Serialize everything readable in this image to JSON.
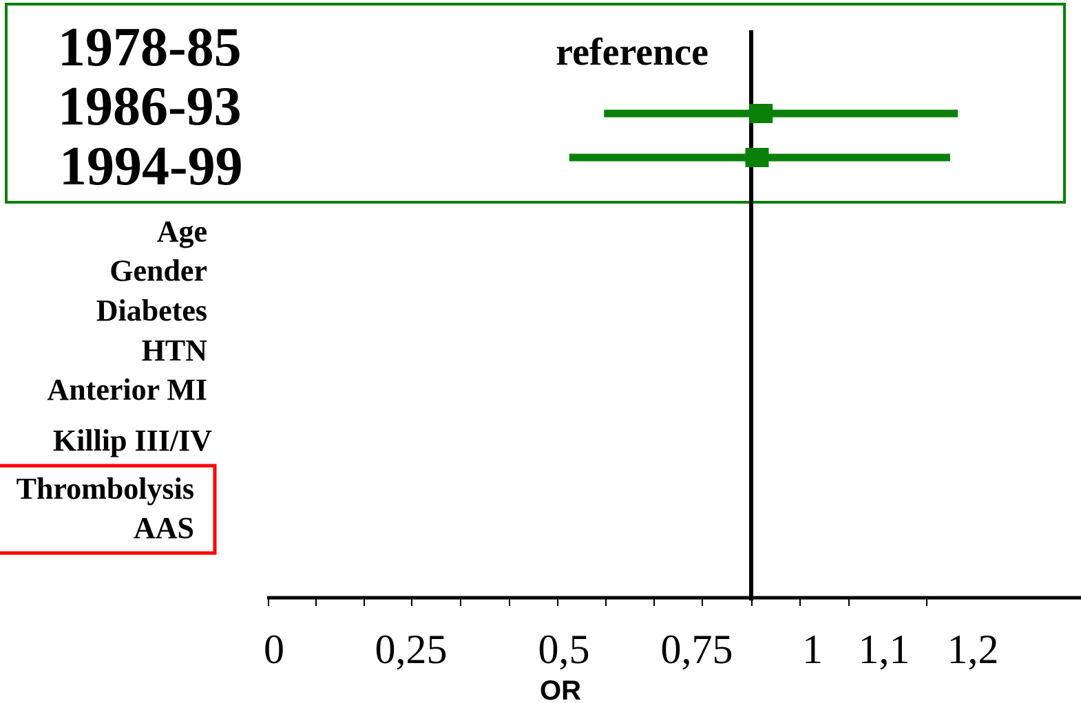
{
  "chart_data": {
    "type": "forest",
    "xlabel": "OR",
    "x_ticks": [
      {
        "value": 0,
        "label": "0"
      },
      {
        "value": 0.25,
        "label": "0,25"
      },
      {
        "value": 0.5,
        "label": "0,5"
      },
      {
        "value": 0.75,
        "label": "0,75"
      },
      {
        "value": 1,
        "label": "1"
      },
      {
        "value": 1.1,
        "label": "1,1"
      },
      {
        "value": 1.2,
        "label": "1,2"
      }
    ],
    "reference_line": 1,
    "period_rows": [
      {
        "label": "1978-85",
        "note": "reference"
      },
      {
        "label": "1986-93",
        "or": 0.9,
        "ci_low": 0.58,
        "ci_high": 1.24
      },
      {
        "label": "1994-99",
        "or": 0.89,
        "ci_low": 0.52,
        "ci_high": 1.23
      }
    ],
    "variables": [
      "Age",
      "Gender",
      "Diabetes",
      "HTN",
      "Anterior MI",
      "Killip III/IV"
    ],
    "highlighted_variables": [
      "Thrombolysis",
      "AAS"
    ],
    "colors": {
      "estimate": "#0a800a",
      "period_box": "#0a800a",
      "highlight_box": "#ff0000",
      "axis": "#000000"
    }
  }
}
